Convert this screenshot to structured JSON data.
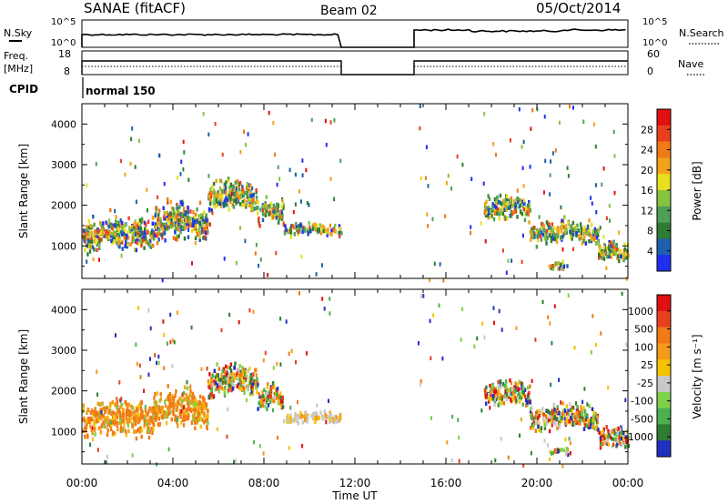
{
  "header": {
    "title": "SANAE (fitACF)",
    "beam": "Beam 02",
    "date": "05/Oct/2014"
  },
  "strips": {
    "nsky_label": "N.Sky",
    "nsky_ticks": [
      "10^5",
      "10^0"
    ],
    "nsearch_label": "N.Search",
    "nsearch_ticks": [
      "10^5",
      "10^0"
    ],
    "freq_label": "Freq.",
    "freq_unit": "[MHz]",
    "freq_ticks": [
      "18",
      "8"
    ],
    "nave_label": "Nave",
    "nave_ticks": [
      "60",
      "0"
    ],
    "cpid_label": "CPID",
    "cpid_value": "normal 150"
  },
  "chart_data": [
    {
      "type": "heatmap",
      "parameter": "power",
      "ylabel": "Slant Range [km]",
      "ylim": [
        200,
        4500
      ],
      "yticks": [
        "1000",
        "2000",
        "3000",
        "4000"
      ],
      "xticks": [
        "00:00",
        "04:00",
        "08:00",
        "12:00",
        "16:00",
        "20:00",
        "00:00"
      ],
      "xlim_hours": [
        0,
        24
      ],
      "colorbar": {
        "label": "Power [dB]",
        "ticks": [
          "4",
          "8",
          "12",
          "16",
          "20",
          "24",
          "28"
        ],
        "colors": [
          "#1f2ff0",
          "#1f5fb0",
          "#2e7d32",
          "#4f9f55",
          "#86c440",
          "#e6e01e",
          "#f3a21a",
          "#f07a14",
          "#e8401e",
          "#e01010"
        ]
      },
      "echo_regions": [
        {
          "t_start": "00:00",
          "t_end": "03:00",
          "range_km": [
            700,
            1800
          ]
        },
        {
          "t_start": "03:00",
          "t_end": "05:30",
          "range_km": [
            900,
            2100
          ]
        },
        {
          "t_start": "05:30",
          "t_end": "07:40",
          "range_km": [
            1700,
            2700
          ]
        },
        {
          "t_start": "07:40",
          "t_end": "08:50",
          "range_km": [
            1400,
            2200
          ]
        },
        {
          "t_start": "08:50",
          "t_end": "11:20",
          "range_km": [
            1200,
            1600
          ]
        },
        {
          "t_start": "17:40",
          "t_end": "19:40",
          "range_km": [
            1500,
            2300
          ]
        },
        {
          "t_start": "19:40",
          "t_end": "22:40",
          "range_km": [
            900,
            1700
          ]
        },
        {
          "t_start": "20:30",
          "t_end": "21:20",
          "range_km": [
            400,
            650
          ]
        },
        {
          "t_start": "22:40",
          "t_end": "24:00",
          "range_km": [
            500,
            1200
          ]
        }
      ]
    },
    {
      "type": "heatmap",
      "parameter": "velocity",
      "ylabel": "Slant Range [km]",
      "ylim": [
        200,
        4500
      ],
      "yticks": [
        "1000",
        "2000",
        "3000",
        "4000"
      ],
      "xlabel": "Time UT",
      "xticks": [
        "00:00",
        "04:00",
        "08:00",
        "12:00",
        "16:00",
        "20:00",
        "00:00"
      ],
      "xlim_hours": [
        0,
        24
      ],
      "colorbar": {
        "label": "Velocity [m s⁻¹]",
        "ticks": [
          "1000",
          "500",
          "100",
          "25",
          "-25",
          "-100",
          "-500",
          "-1000"
        ],
        "colors": [
          "#2030c0",
          "#2e7d32",
          "#4caf50",
          "#7fd14a",
          "#c8c8c8",
          "#f5c200",
          "#f39a1a",
          "#f07a14",
          "#e8401e",
          "#e01010"
        ]
      },
      "echo_regions": [
        {
          "t_start": "00:00",
          "t_end": "03:00",
          "range_km": [
            700,
            1800
          ]
        },
        {
          "t_start": "03:00",
          "t_end": "05:30",
          "range_km": [
            900,
            2100
          ]
        },
        {
          "t_start": "05:30",
          "t_end": "07:40",
          "range_km": [
            1700,
            2700
          ]
        },
        {
          "t_start": "07:40",
          "t_end": "08:50",
          "range_km": [
            1400,
            2200
          ]
        },
        {
          "t_start": "08:50",
          "t_end": "11:20",
          "range_km": [
            1150,
            1550
          ]
        },
        {
          "t_start": "17:40",
          "t_end": "19:40",
          "range_km": [
            1500,
            2300
          ]
        },
        {
          "t_start": "19:40",
          "t_end": "22:40",
          "range_km": [
            900,
            1700
          ]
        },
        {
          "t_start": "20:30",
          "t_end": "21:20",
          "range_km": [
            400,
            650
          ]
        },
        {
          "t_start": "22:40",
          "t_end": "24:00",
          "range_km": [
            500,
            1200
          ]
        }
      ]
    }
  ]
}
